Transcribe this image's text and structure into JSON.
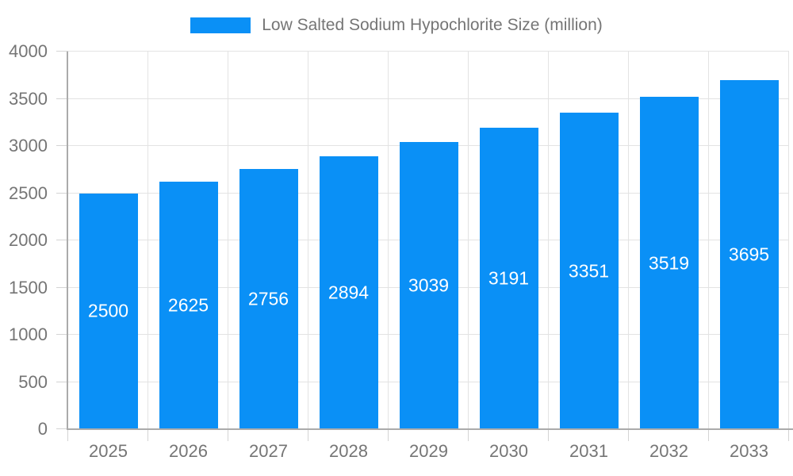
{
  "chart_data": {
    "type": "bar",
    "title": "Low Salted Sodium Hypochlorite Size (million)",
    "categories": [
      "2025",
      "2026",
      "2027",
      "2028",
      "2029",
      "2030",
      "2031",
      "2032",
      "2033"
    ],
    "values": [
      2500,
      2625,
      2756,
      2894,
      3039,
      3191,
      3351,
      3519,
      3695
    ],
    "series": [
      {
        "name": "Low Salted Sodium Hypochlorite Size (million)",
        "values": [
          2500,
          2625,
          2756,
          2894,
          3039,
          3191,
          3351,
          3519,
          3695
        ]
      }
    ],
    "xlabel": "",
    "ylabel": "",
    "ylim": [
      0,
      4000
    ],
    "ytick_step": 500,
    "yticks": [
      0,
      500,
      1000,
      1500,
      2000,
      2500,
      3000,
      3500,
      4000
    ],
    "grid": true,
    "legend_position": "top-center",
    "bar_value_labels": "inside-center"
  },
  "colors": {
    "bar": "#0A90F6",
    "bar_label_text": "#ffffff",
    "axis_line": "#ababab",
    "gridline": "#e3e3e3",
    "tick": "#d4d4d4",
    "axis_label_text": "#757575",
    "background": "#ffffff"
  }
}
